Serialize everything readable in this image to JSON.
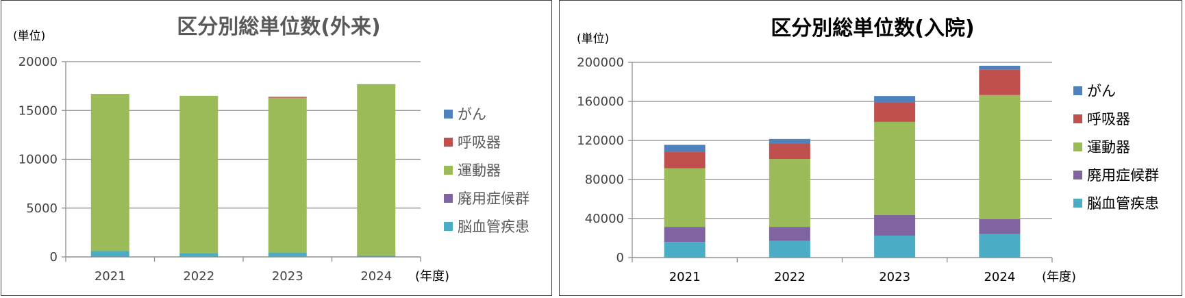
{
  "chart_data": [
    {
      "type": "bar",
      "stacked": true,
      "title": "区分別総単位数(外来)",
      "ylabel": "(単位)",
      "xlabel": "(年度)",
      "categories": [
        "2021",
        "2022",
        "2023",
        "2024"
      ],
      "ylim": [
        0,
        20000
      ],
      "yticks": [
        "0",
        "5000",
        "10000",
        "15000",
        "20000"
      ],
      "grid": true,
      "legend_position": "right",
      "series": [
        {
          "name": "脳血管疾患",
          "color": "#4BACC6",
          "values": [
            600,
            400,
            450,
            150
          ]
        },
        {
          "name": "廃用症候群",
          "color": "#8064A2",
          "values": [
            0,
            0,
            0,
            0
          ]
        },
        {
          "name": "運動器",
          "color": "#9BBB59",
          "values": [
            16100,
            16100,
            15850,
            17550
          ]
        },
        {
          "name": "呼吸器",
          "color": "#C0504D",
          "values": [
            0,
            0,
            100,
            0
          ]
        },
        {
          "name": "がん",
          "color": "#4F81BD",
          "values": [
            0,
            0,
            0,
            0
          ]
        }
      ]
    },
    {
      "type": "bar",
      "stacked": true,
      "title": "区分別総単位数(入院)",
      "ylabel": "(単位)",
      "xlabel": "(年度)",
      "categories": [
        "2021",
        "2022",
        "2023",
        "2024"
      ],
      "ylim": [
        0,
        200000
      ],
      "yticks": [
        "0",
        "40000",
        "80000",
        "120000",
        "160000",
        "200000"
      ],
      "grid": true,
      "legend_position": "right",
      "series": [
        {
          "name": "脳血管疾患",
          "color": "#4BACC6",
          "values": [
            16000,
            17000,
            22500,
            24000
          ]
        },
        {
          "name": "廃用症候群",
          "color": "#8064A2",
          "values": [
            15500,
            14500,
            21000,
            15500
          ]
        },
        {
          "name": "運動器",
          "color": "#9BBB59",
          "values": [
            60000,
            69500,
            95500,
            127000
          ]
        },
        {
          "name": "呼吸器",
          "color": "#C0504D",
          "values": [
            17000,
            15500,
            20000,
            26000
          ]
        },
        {
          "name": "がん",
          "color": "#4F81BD",
          "values": [
            7000,
            5000,
            6500,
            4000
          ]
        }
      ]
    }
  ]
}
